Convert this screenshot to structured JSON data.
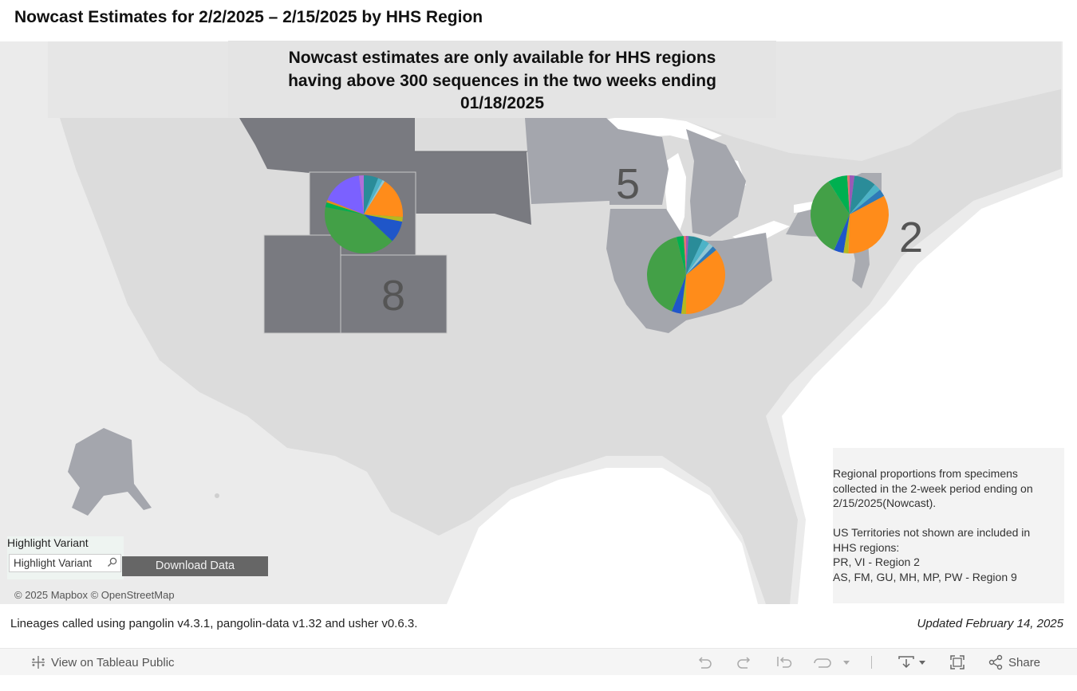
{
  "page": {
    "title": "Nowcast Estimates for 2/2/2025 – 2/15/2025 by HHS Region"
  },
  "notice": {
    "line1": "Nowcast estimates are only available for HHS regions",
    "line2": "having above 300 sequences in the two weeks ending",
    "line3": "01/18/2025"
  },
  "regions": [
    {
      "label": "8"
    },
    {
      "label": "5"
    },
    {
      "label": "2"
    }
  ],
  "info": {
    "line1": "Regional proportions from specimens",
    "line2": "collected in the 2-week period ending on",
    "line3": "2/15/2025(Nowcast).",
    "line4": "US Territories not shown are included in",
    "line5": "HHS regions:",
    "line6": "PR, VI - Region 2",
    "line7": "AS, FM, GU, MH, MP, PW - Region 9"
  },
  "controls": {
    "highlight_label": "Highlight Variant",
    "highlight_placeholder": "Highlight Variant",
    "download_label": "Download Data"
  },
  "attribution": "© 2025 Mapbox  © OpenStreetMap",
  "footer": {
    "lineages": "Lineages called using pangolin v4.3.1, pangolin-data v1.32 and usher v0.6.3.",
    "updated": "Updated February 14, 2025"
  },
  "toolbar": {
    "view_label": "View on Tableau Public",
    "share_label": "Share",
    "icons": [
      "undo-icon",
      "redo-icon",
      "revert-icon",
      "refresh-icon",
      "download-icon",
      "fullscreen-icon",
      "share-icon"
    ]
  },
  "colors": {
    "map_background": "#ebebeb",
    "land": "#d9d9d9",
    "region8": "#797a80",
    "region5": "#a4a6ad",
    "region2": "#a9abb1",
    "water": "#ffffff"
  },
  "pie_data": [
    {
      "region": "8",
      "slices": [
        {
          "color": "#2a8c99",
          "value": 6
        },
        {
          "color": "#4db3c7",
          "value": 2
        },
        {
          "color": "#8fc7d4",
          "value": 1
        },
        {
          "color": "#ff8c1a",
          "value": 17
        },
        {
          "color": "#b5b820",
          "value": 2
        },
        {
          "color": "#1f56c9",
          "value": 9
        },
        {
          "color": "#43a047",
          "value": 41
        },
        {
          "color": "#00b050",
          "value": 2
        },
        {
          "color": "#e58e17",
          "value": 1
        },
        {
          "color": "#7b61ff",
          "value": 17
        },
        {
          "color": "#b06fd8",
          "value": 2
        }
      ]
    },
    {
      "region": "5",
      "slices": [
        {
          "color": "#9b59b6",
          "value": 1
        },
        {
          "color": "#2a8c99",
          "value": 6
        },
        {
          "color": "#4db3c7",
          "value": 3
        },
        {
          "color": "#8fc7d4",
          "value": 2
        },
        {
          "color": "#2e7bb8",
          "value": 2
        },
        {
          "color": "#ff8c1a",
          "value": 36
        },
        {
          "color": "#b5b820",
          "value": 2
        },
        {
          "color": "#1f56c9",
          "value": 4
        },
        {
          "color": "#43a047",
          "value": 40
        },
        {
          "color": "#00b050",
          "value": 3
        },
        {
          "color": "#e57373",
          "value": 1
        }
      ]
    },
    {
      "region": "2",
      "slices": [
        {
          "color": "#9b59b6",
          "value": 2
        },
        {
          "color": "#2a8c99",
          "value": 9
        },
        {
          "color": "#4db3c7",
          "value": 3
        },
        {
          "color": "#2e7bb8",
          "value": 3
        },
        {
          "color": "#ff8c1a",
          "value": 33
        },
        {
          "color": "#b5b820",
          "value": 2
        },
        {
          "color": "#1f56c9",
          "value": 4
        },
        {
          "color": "#43a047",
          "value": 34
        },
        {
          "color": "#00b050",
          "value": 8
        },
        {
          "color": "#e57373",
          "value": 1
        }
      ]
    }
  ]
}
